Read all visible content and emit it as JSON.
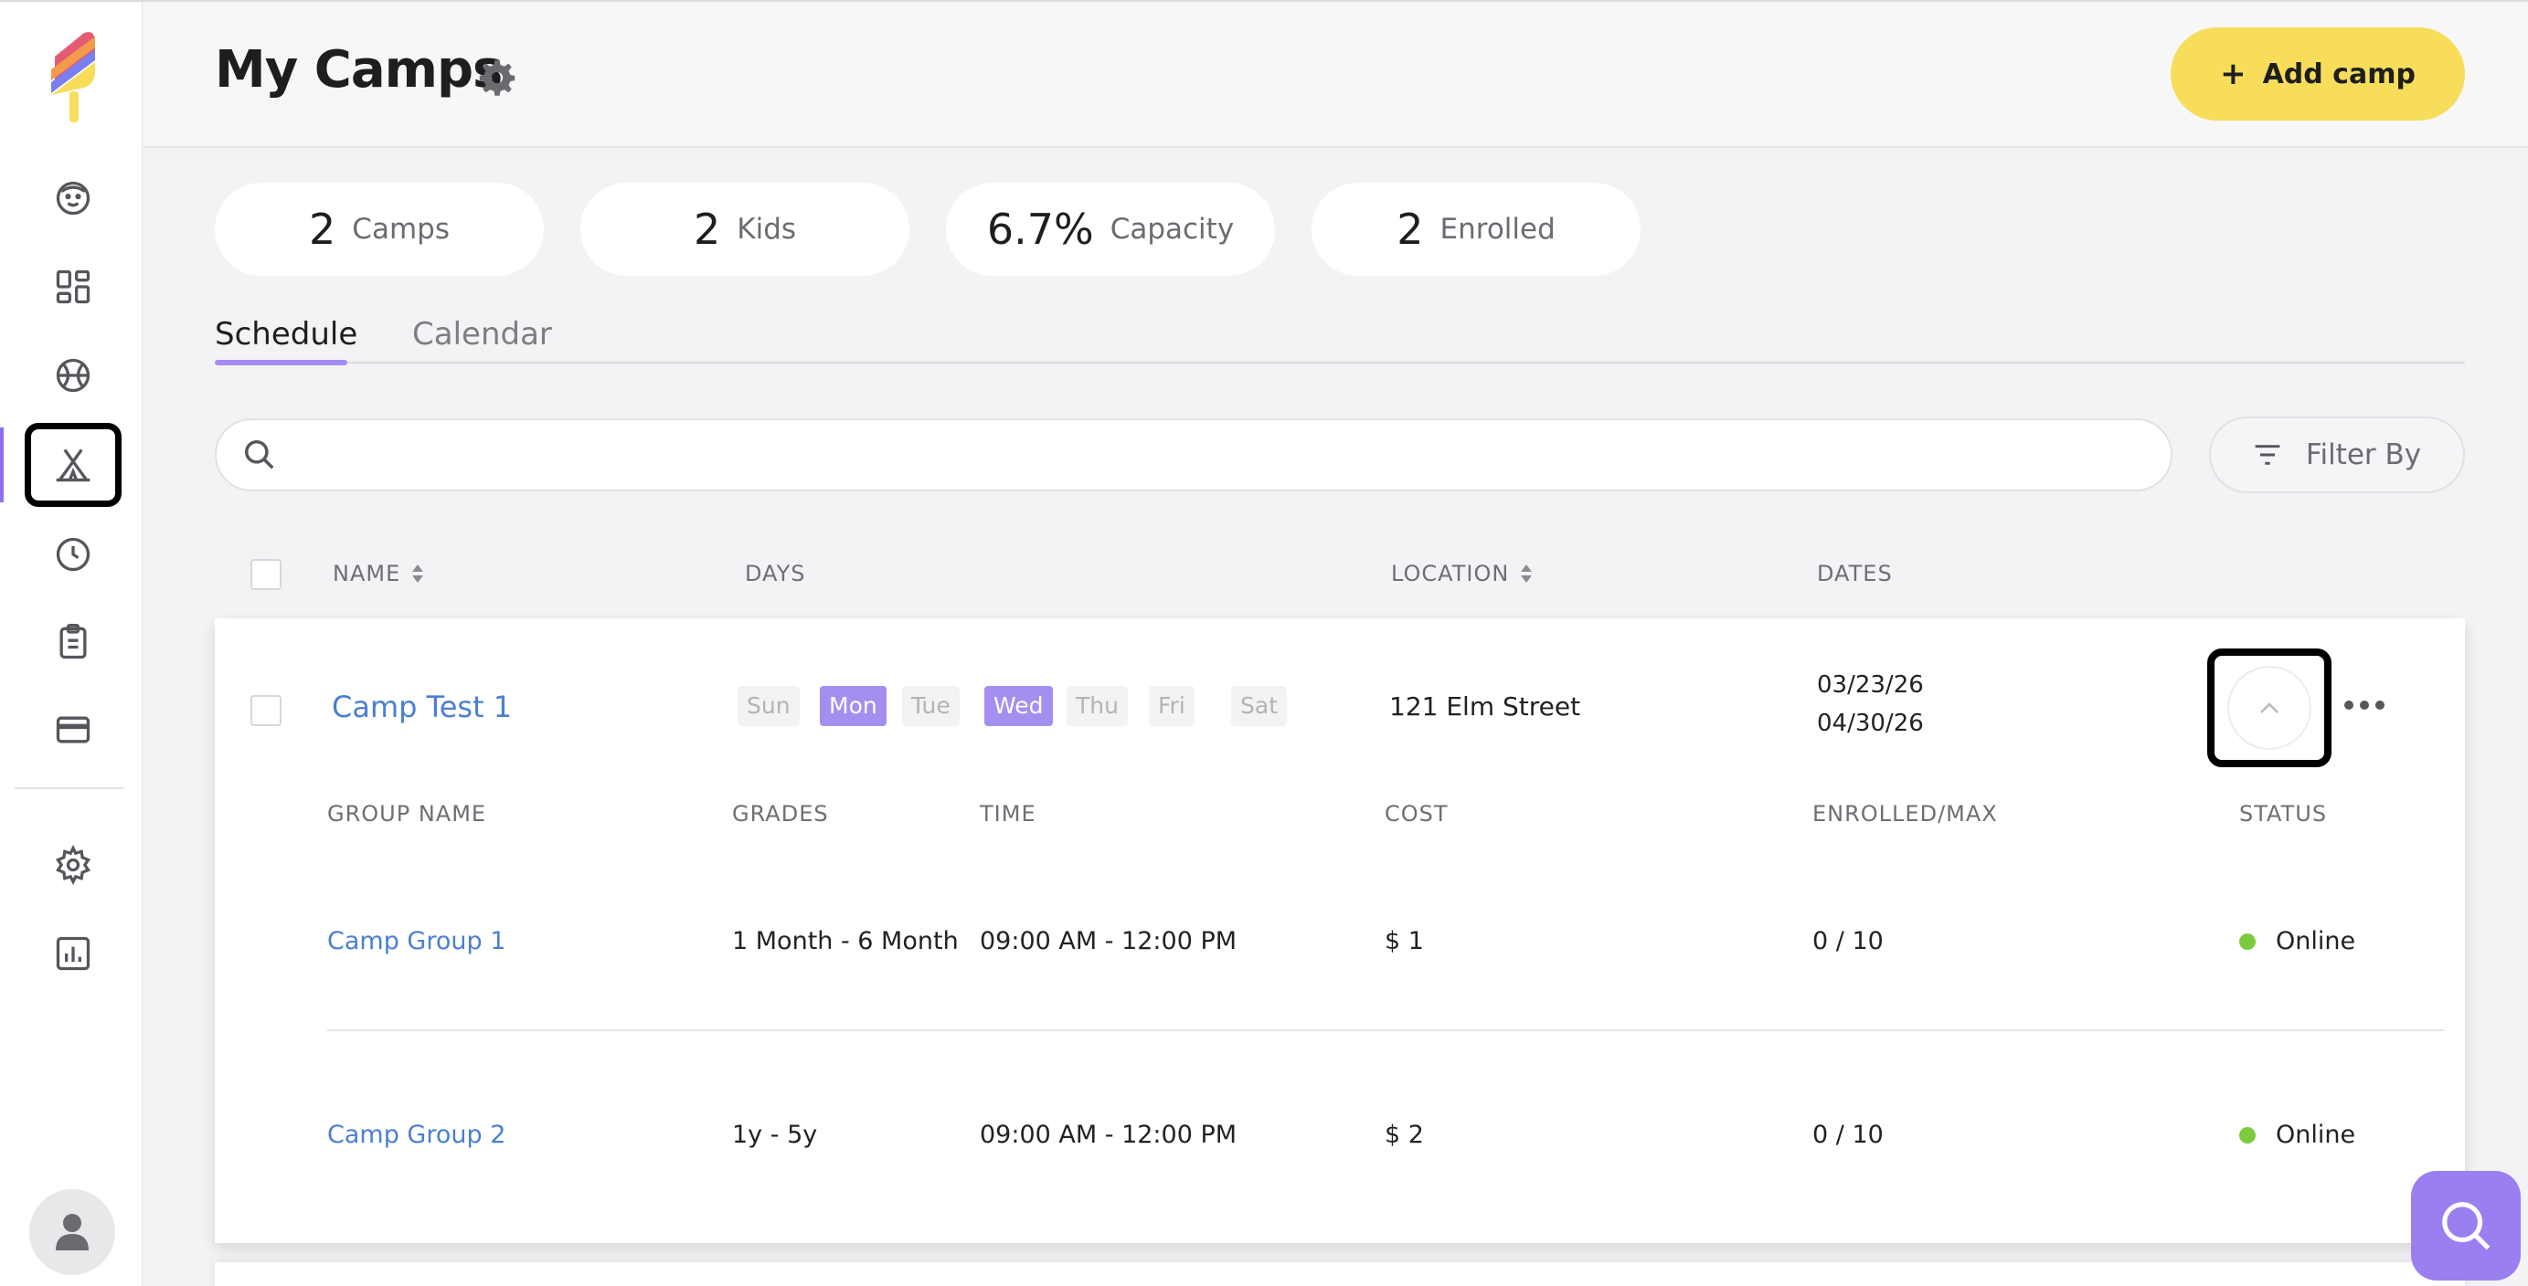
{
  "header": {
    "title": "My Camps",
    "add_button": "Add camp",
    "add_icon": "plus-icon",
    "title_icon": "gear-icon"
  },
  "stats": [
    {
      "value": "2",
      "label": "Camps"
    },
    {
      "value": "2",
      "label": "Kids"
    },
    {
      "value": "6.7%",
      "label": "Capacity"
    },
    {
      "value": "2",
      "label": "Enrolled"
    }
  ],
  "tabs": [
    {
      "label": "Schedule",
      "active": true
    },
    {
      "label": "Calendar",
      "active": false
    }
  ],
  "search": {
    "placeholder": ""
  },
  "filter": {
    "label": "Filter By"
  },
  "table": {
    "headers": [
      "NAME",
      "DAYS",
      "LOCATION",
      "DATES"
    ],
    "camps": [
      {
        "name": "Camp Test 1",
        "days": [
          {
            "label": "Sun",
            "on": false
          },
          {
            "label": "Mon",
            "on": true
          },
          {
            "label": "Tue",
            "on": false
          },
          {
            "label": "Wed",
            "on": true
          },
          {
            "label": "Thu",
            "on": false
          },
          {
            "label": "Fri",
            "on": false
          },
          {
            "label": "Sat",
            "on": false
          }
        ],
        "location": "121 Elm Street",
        "start_date": "03/23/26",
        "end_date": "04/30/26",
        "group_headers": [
          "GROUP NAME",
          "GRADES",
          "TIME",
          "COST",
          "ENROLLED/MAX",
          "STATUS"
        ],
        "groups": [
          {
            "name": "Camp Group 1",
            "grades": "1 Month - 6 Month",
            "time": "09:00 AM - 12:00 PM",
            "cost": "$ 1",
            "enrolled": "0 / 10",
            "status": "Online"
          },
          {
            "name": "Camp Group 2",
            "grades": "1y - 5y",
            "time": "09:00 AM - 12:00 PM",
            "cost": "$ 2",
            "enrolled": "0 / 10",
            "status": "Online"
          }
        ]
      }
    ]
  },
  "colors": {
    "accent": "#a48ff0",
    "add_button": "#f7dd5a",
    "link": "#4a7fd4",
    "status_online": "#7ccb3e"
  },
  "sidebar": {
    "icons": [
      "logo-icon",
      "kids-icon",
      "dashboard-icon",
      "sports-icon",
      "camps-icon",
      "clock-icon",
      "clipboard-icon",
      "payment-card-icon",
      "settings-icon",
      "reports-icon",
      "user-avatar-icon"
    ]
  }
}
